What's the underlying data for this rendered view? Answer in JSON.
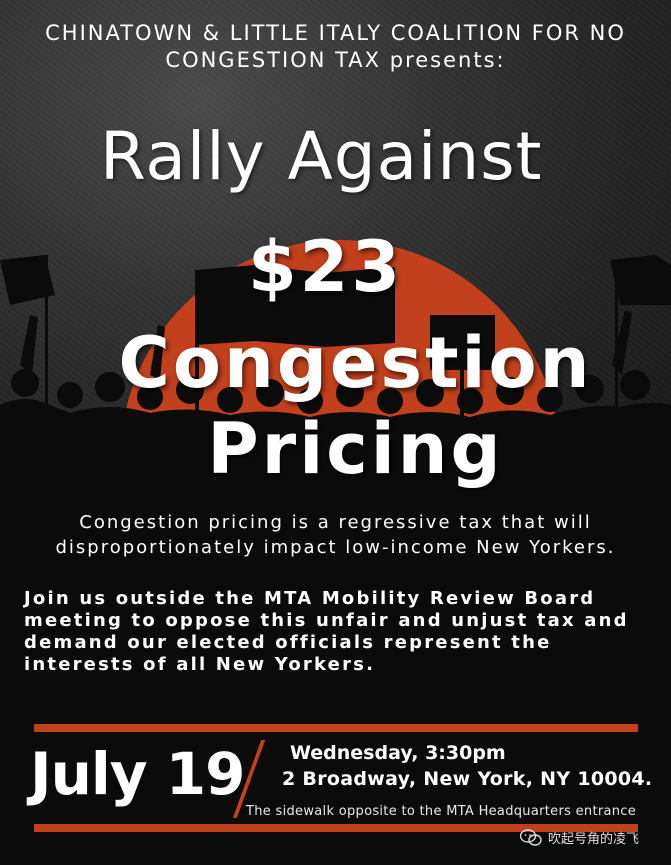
{
  "header": {
    "presenter": "CHINATOWN & LITTLE ITALY COALITION FOR NO CONGESTION TAX presents:"
  },
  "title": {
    "line1": "Rally Against",
    "line2": "$23",
    "line3": "Congestion",
    "line4": "Pricing"
  },
  "subtitle": "Congestion pricing is a regressive tax that will disproportionately impact low-income New Yorkers.",
  "callout": "Join us outside the MTA Mobility Review Board meeting to oppose this unfair and unjust tax and demand our elected officials represent the interests of all New Yorkers.",
  "event": {
    "date": "July 19",
    "day_time": "Wednesday, 3:30pm",
    "address": "2 Broadway, New York, NY 10004.",
    "location_note": "The sidewalk opposite to the MTA Headquarters entrance"
  },
  "watermark": {
    "icon": "wechat-icon",
    "text": "吹起号角的凌飞"
  },
  "colors": {
    "accent": "#c2401b",
    "background": "#0b0b0b",
    "text": "#ffffff"
  }
}
